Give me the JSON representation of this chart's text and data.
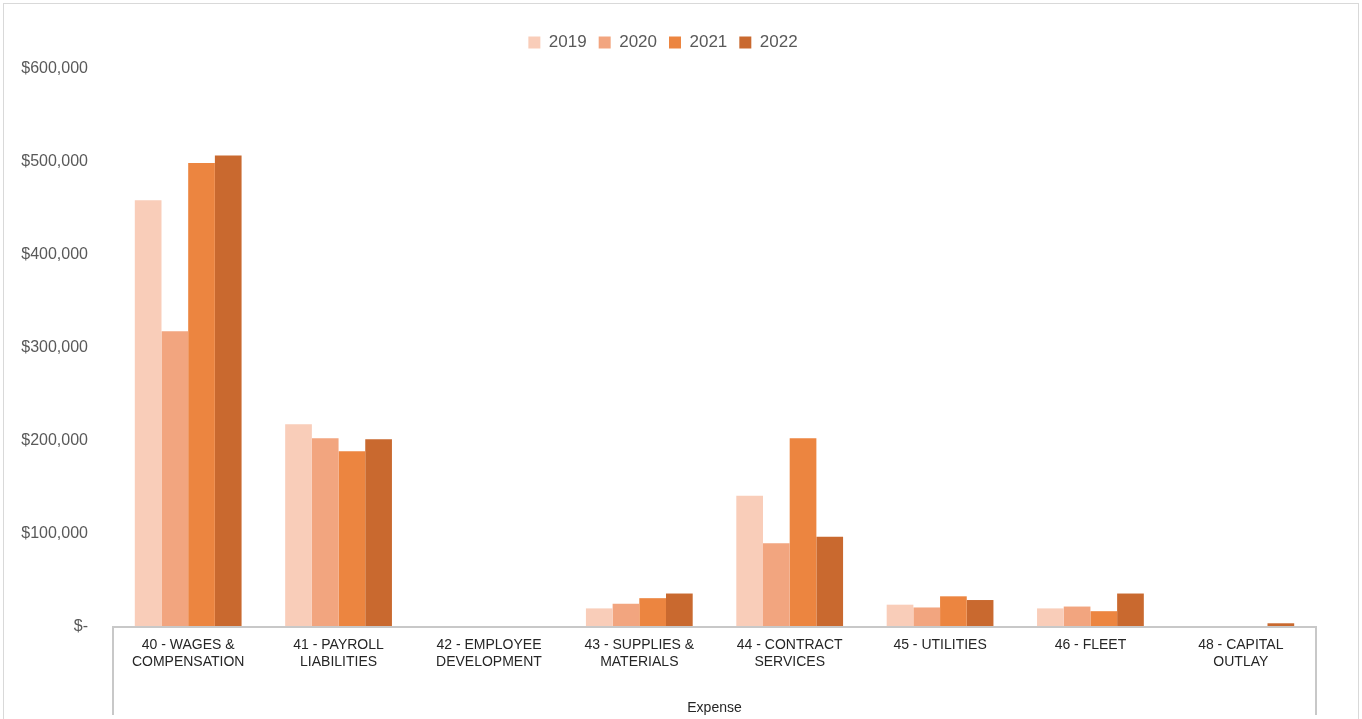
{
  "chart_data": {
    "type": "bar",
    "xlabel": "Expense",
    "legend": "top",
    "categories": [
      "40 - WAGES & COMPENSATION",
      "41 - PAYROLL LIABILITIES",
      "42 - EMPLOYEE DEVELOPMENT",
      "43 - SUPPLIES & MATERIALS",
      "44 - CONTRACT SERVICES",
      "45 - UTILITIES",
      "46 - FLEET",
      "48 - CAPITAL OUTLAY"
    ],
    "series": [
      {
        "name": "2019",
        "color": "#f9cdb9",
        "values": [
          459000,
          218000,
          0,
          20000,
          141000,
          24000,
          20000,
          0
        ]
      },
      {
        "name": "2020",
        "color": "#f2a57f",
        "values": [
          318000,
          203000,
          0,
          25000,
          90000,
          21000,
          22000,
          0
        ]
      },
      {
        "name": "2021",
        "color": "#ec8540",
        "values": [
          499000,
          189000,
          0,
          31000,
          203000,
          33000,
          17000,
          0
        ]
      },
      {
        "name": "2022",
        "color": "#c9692f",
        "values": [
          507000,
          202000,
          0,
          36000,
          97000,
          29000,
          36000,
          4000
        ]
      }
    ],
    "ylim": [
      0,
      600000
    ],
    "yticks": [
      {
        "value": 0,
        "label": "$-"
      },
      {
        "value": 100000,
        "label": "$100,000"
      },
      {
        "value": 200000,
        "label": "$200,000"
      },
      {
        "value": 300000,
        "label": "$300,000"
      },
      {
        "value": 400000,
        "label": "$400,000"
      },
      {
        "value": 500000,
        "label": "$500,000"
      },
      {
        "value": 600000,
        "label": "$600,000"
      }
    ]
  }
}
